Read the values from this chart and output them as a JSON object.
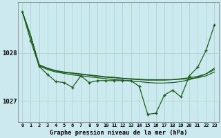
{
  "background_color": "#cde9f0",
  "plot_bg_color": "#cde9f0",
  "grid_color": "#b0d8cc",
  "line_color": "#1a5c1a",
  "marker_color": "#1a5c1a",
  "title": "Graphe pression niveau de la mer (hPa)",
  "xlim": [
    -0.5,
    23.5
  ],
  "ylim": [
    1026.55,
    1029.05
  ],
  "yticks": [
    1027.0,
    1028.0
  ],
  "xticks": [
    0,
    1,
    2,
    3,
    4,
    5,
    6,
    7,
    8,
    9,
    10,
    11,
    12,
    13,
    14,
    15,
    16,
    17,
    18,
    19,
    20,
    21,
    22,
    23
  ],
  "smooth1": [
    1028.85,
    1028.35,
    1027.75,
    1027.68,
    1027.63,
    1027.6,
    1027.58,
    1027.56,
    1027.54,
    1027.52,
    1027.5,
    1027.49,
    1027.47,
    1027.46,
    1027.45,
    1027.44,
    1027.44,
    1027.44,
    1027.44,
    1027.45,
    1027.46,
    1027.48,
    1027.52,
    1027.6
  ],
  "smooth2": [
    1028.85,
    1028.35,
    1027.75,
    1027.67,
    1027.62,
    1027.59,
    1027.57,
    1027.55,
    1027.53,
    1027.51,
    1027.49,
    1027.48,
    1027.46,
    1027.45,
    1027.44,
    1027.43,
    1027.43,
    1027.43,
    1027.44,
    1027.46,
    1027.48,
    1027.51,
    1027.56,
    1027.65
  ],
  "smooth3": [
    1028.85,
    1028.35,
    1027.73,
    1027.65,
    1027.6,
    1027.57,
    1027.54,
    1027.52,
    1027.5,
    1027.48,
    1027.46,
    1027.44,
    1027.43,
    1027.41,
    1027.4,
    1027.38,
    1027.37,
    1027.37,
    1027.38,
    1027.4,
    1027.44,
    1027.49,
    1027.56,
    1027.68
  ],
  "jagged": [
    1028.85,
    1028.25,
    1027.72,
    1027.55,
    1027.4,
    1027.38,
    1027.28,
    1027.52,
    1027.38,
    1027.42,
    1027.42,
    1027.42,
    1027.42,
    1027.42,
    1027.3,
    1026.72,
    1026.74,
    1027.12,
    1027.22,
    1027.08,
    1027.52,
    1027.7,
    1028.05,
    1028.58
  ]
}
